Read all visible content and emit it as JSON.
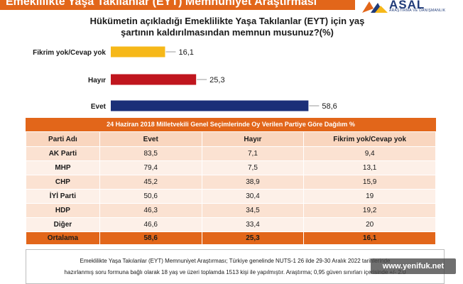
{
  "banner": {
    "title": "Emeklilikte Yaşa Takılanlar (EYT) Memnuniyet Araştırması"
  },
  "logo": {
    "name": "ASAL",
    "tagline": "ARAŞTIRMA VE DANIŞMANLIK"
  },
  "chart_data": {
    "type": "bar",
    "orientation": "horizontal",
    "title": "Hükümetin açıkladığı Emeklilikte Yaşa Takılanlar (EYT) için yaş şartının kaldırılmasından memnun musunuz?(%)",
    "title_lines": [
      "Hükümetin açıkladığı Emeklilikte Yaşa Takılanlar (EYT) için yaş",
      "şartının kaldırılmasından memnun musunuz?(%)"
    ],
    "categories": [
      "Fikrim yok/Cevap yok",
      "Hayır",
      "Evet"
    ],
    "values": [
      16.1,
      25.3,
      58.6
    ],
    "value_labels": [
      "16,1",
      "25,3",
      "58,6"
    ],
    "colors": [
      "#f6b819",
      "#c0161e",
      "#1b2f78"
    ],
    "xlim": [
      0,
      60
    ],
    "grid": false,
    "legend": "none"
  },
  "table": {
    "title": "24 Haziran 2018 Milletvekili Genel Seçimlerinde Oy Verilen Partiye Göre Dağılım %",
    "headers": [
      "Parti Adı",
      "Evet",
      "Hayır",
      "Fikrim yok/Cevap yok"
    ],
    "rows": [
      [
        "AK Parti",
        "83,5",
        "7,1",
        "9,4"
      ],
      [
        "MHP",
        "79,4",
        "7,5",
        "13,1"
      ],
      [
        "CHP",
        "45,2",
        "38,9",
        "15,9"
      ],
      [
        "İYİ Parti",
        "50,6",
        "30,4",
        "19"
      ],
      [
        "HDP",
        "46,3",
        "34,5",
        "19,2"
      ],
      [
        "Diğer",
        "46,6",
        "33,4",
        "20"
      ]
    ],
    "total": [
      "Ortalama",
      "58,6",
      "25,3",
      "16,1"
    ],
    "colors": {
      "header": "#e2661a",
      "total": "#e2661a",
      "row": "#fbe2d2"
    }
  },
  "footnote": {
    "line1": "Emeklilikte Yaşa Takılanlar (EYT) Memnuniyet Araştırması; Türkiye genelinde NUTS-1 26 ilde 29-30 Aralık 2022 tarihlerinde",
    "line2": "hazırlanmış soru formuna bağlı olarak 18 yaş ve üzeri toplamda 1513 kişi ile yapılmıştır. Araştırma; 0,95 güven sınırları içerisinde +/- 2.0"
  },
  "watermark": {
    "text": "www.yenifuk.net"
  }
}
